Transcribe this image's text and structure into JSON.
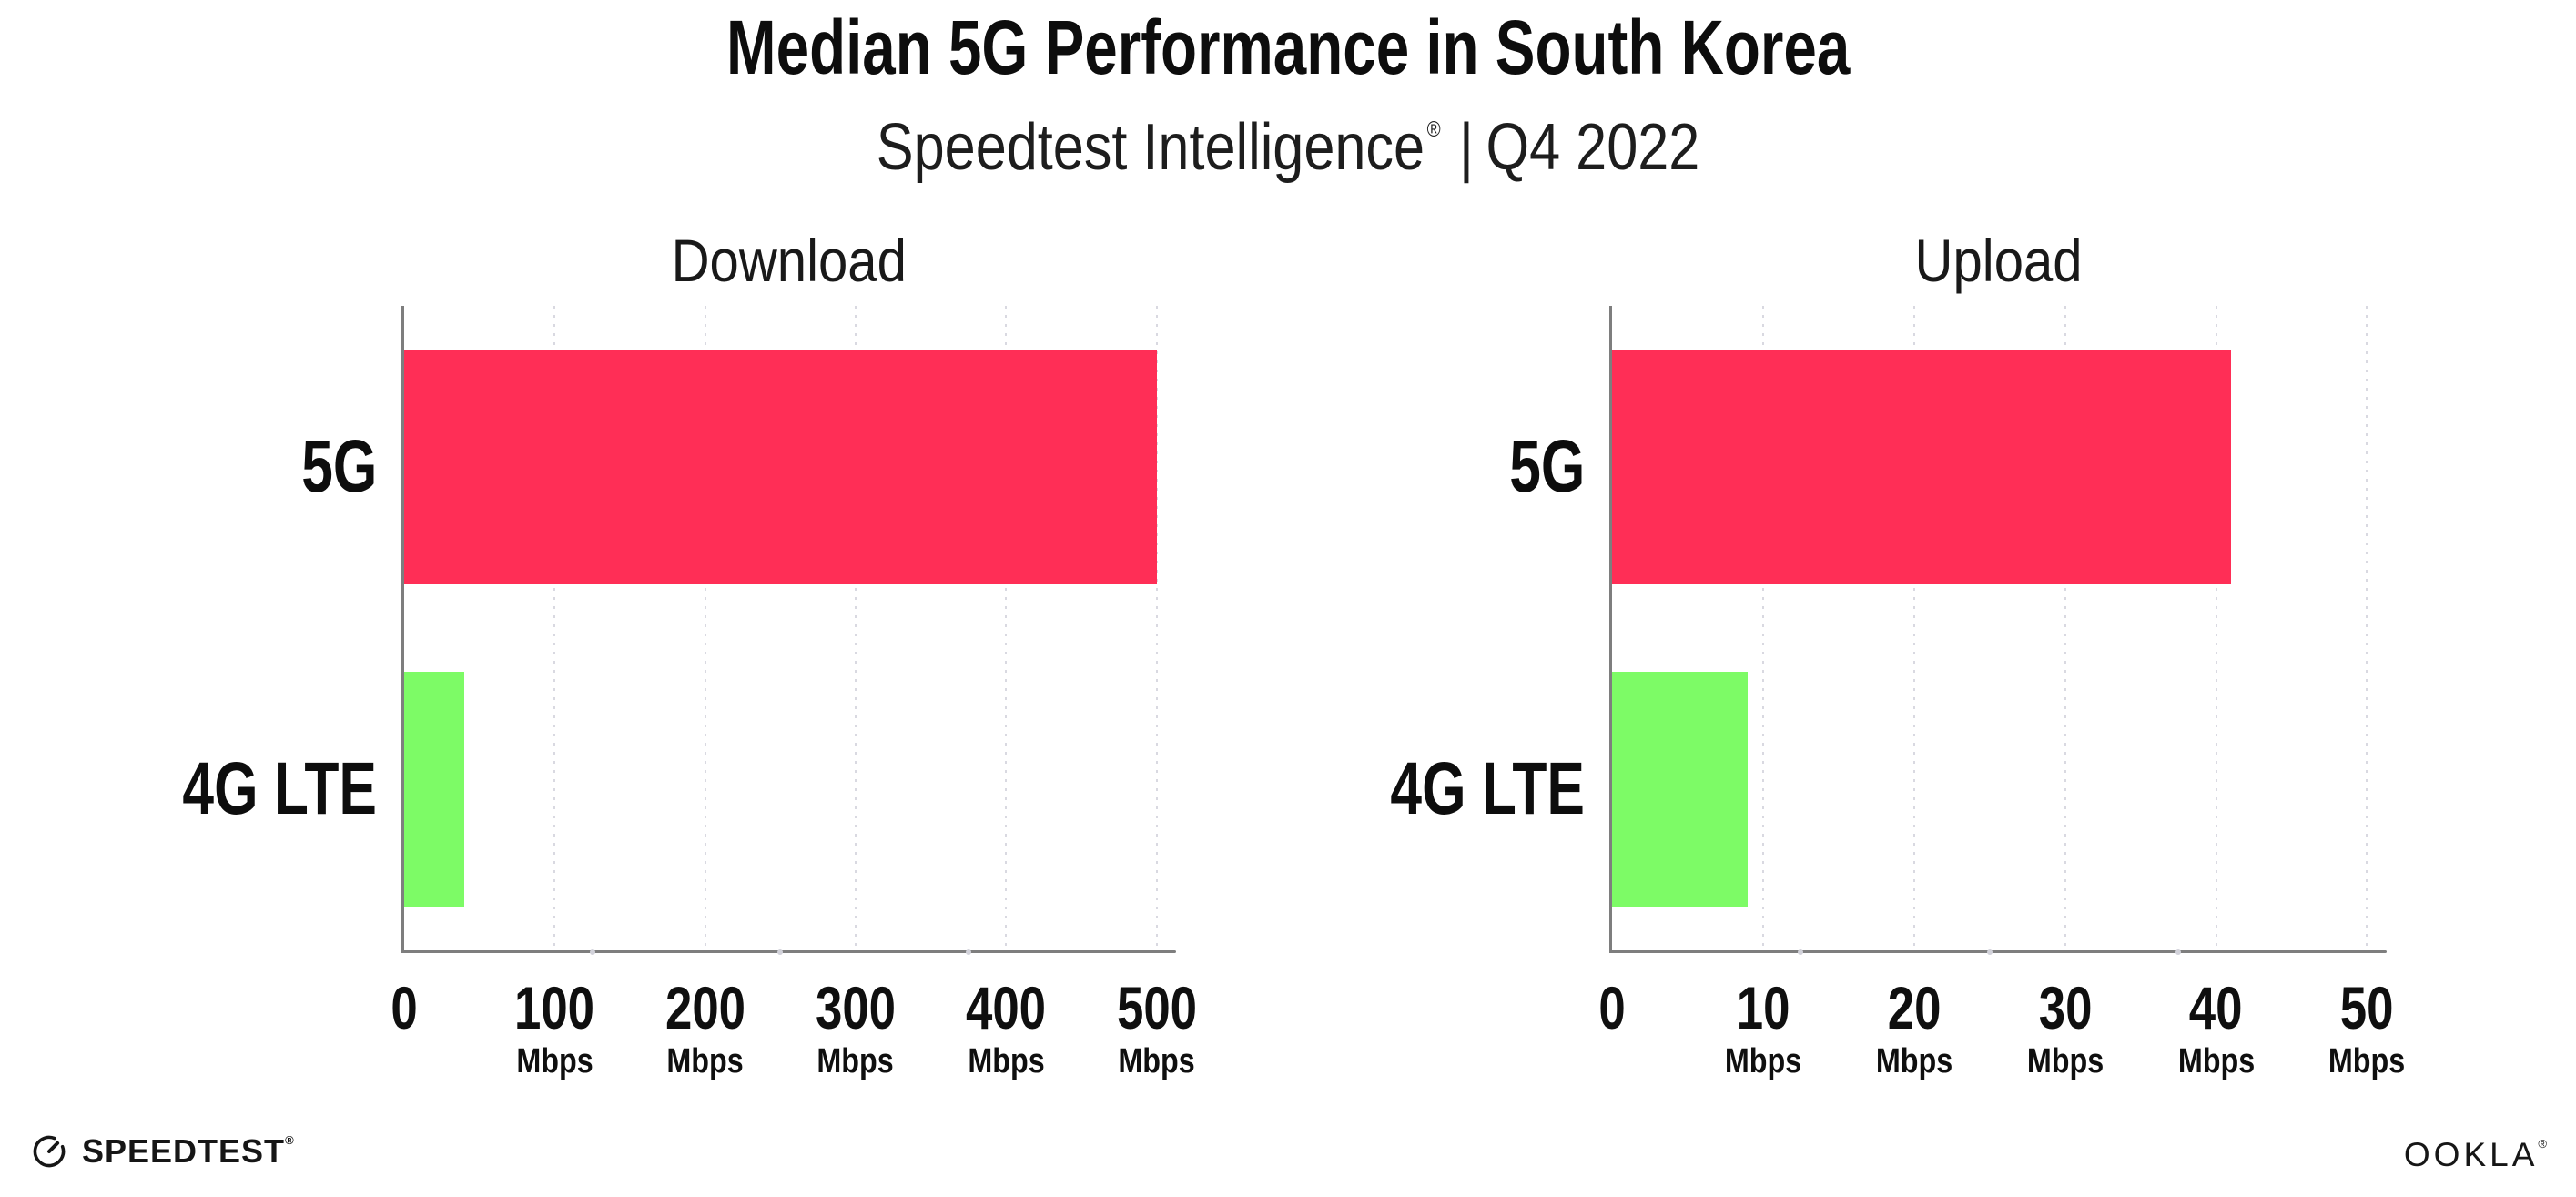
{
  "header": {
    "title": "Median 5G Performance in South Korea",
    "subtitle_brand": "Speedtest Intelligence",
    "subtitle_reg": "®",
    "subtitle_divider": "|",
    "subtitle_period": "Q4 2022"
  },
  "chart_data": [
    {
      "type": "bar",
      "orientation": "horizontal",
      "title": "Download",
      "categories": [
        "5G",
        "4G LTE"
      ],
      "values": [
        500,
        40
      ],
      "unit": "Mbps",
      "xlabel": "",
      "ylabel": "",
      "xlim": [
        0,
        500
      ],
      "xticks": [
        0,
        100,
        200,
        300,
        400,
        500
      ],
      "bar_colors": [
        "#FF2E56",
        "#7DFB66"
      ],
      "grid": "vertical-dotted",
      "legend": "none"
    },
    {
      "type": "bar",
      "orientation": "horizontal",
      "title": "Upload",
      "categories": [
        "5G",
        "4G LTE"
      ],
      "values": [
        41,
        9
      ],
      "unit": "Mbps",
      "xlabel": "",
      "ylabel": "",
      "xlim": [
        0,
        50
      ],
      "xticks": [
        0,
        10,
        20,
        30,
        40,
        50
      ],
      "bar_colors": [
        "#FF2E56",
        "#7DFB66"
      ],
      "grid": "vertical-dotted",
      "legend": "none"
    }
  ],
  "colors": {
    "bar_5g": "#FF2E56",
    "bar_4g_lte": "#7DFB66",
    "axis": "#7e7e7e",
    "gridline": "#d9d9e1",
    "text": "#111111"
  },
  "footer": {
    "speedtest_label": "SPEEDTEST",
    "speedtest_reg": "®",
    "ookla_label": "OOKLA",
    "ookla_reg": "®"
  }
}
